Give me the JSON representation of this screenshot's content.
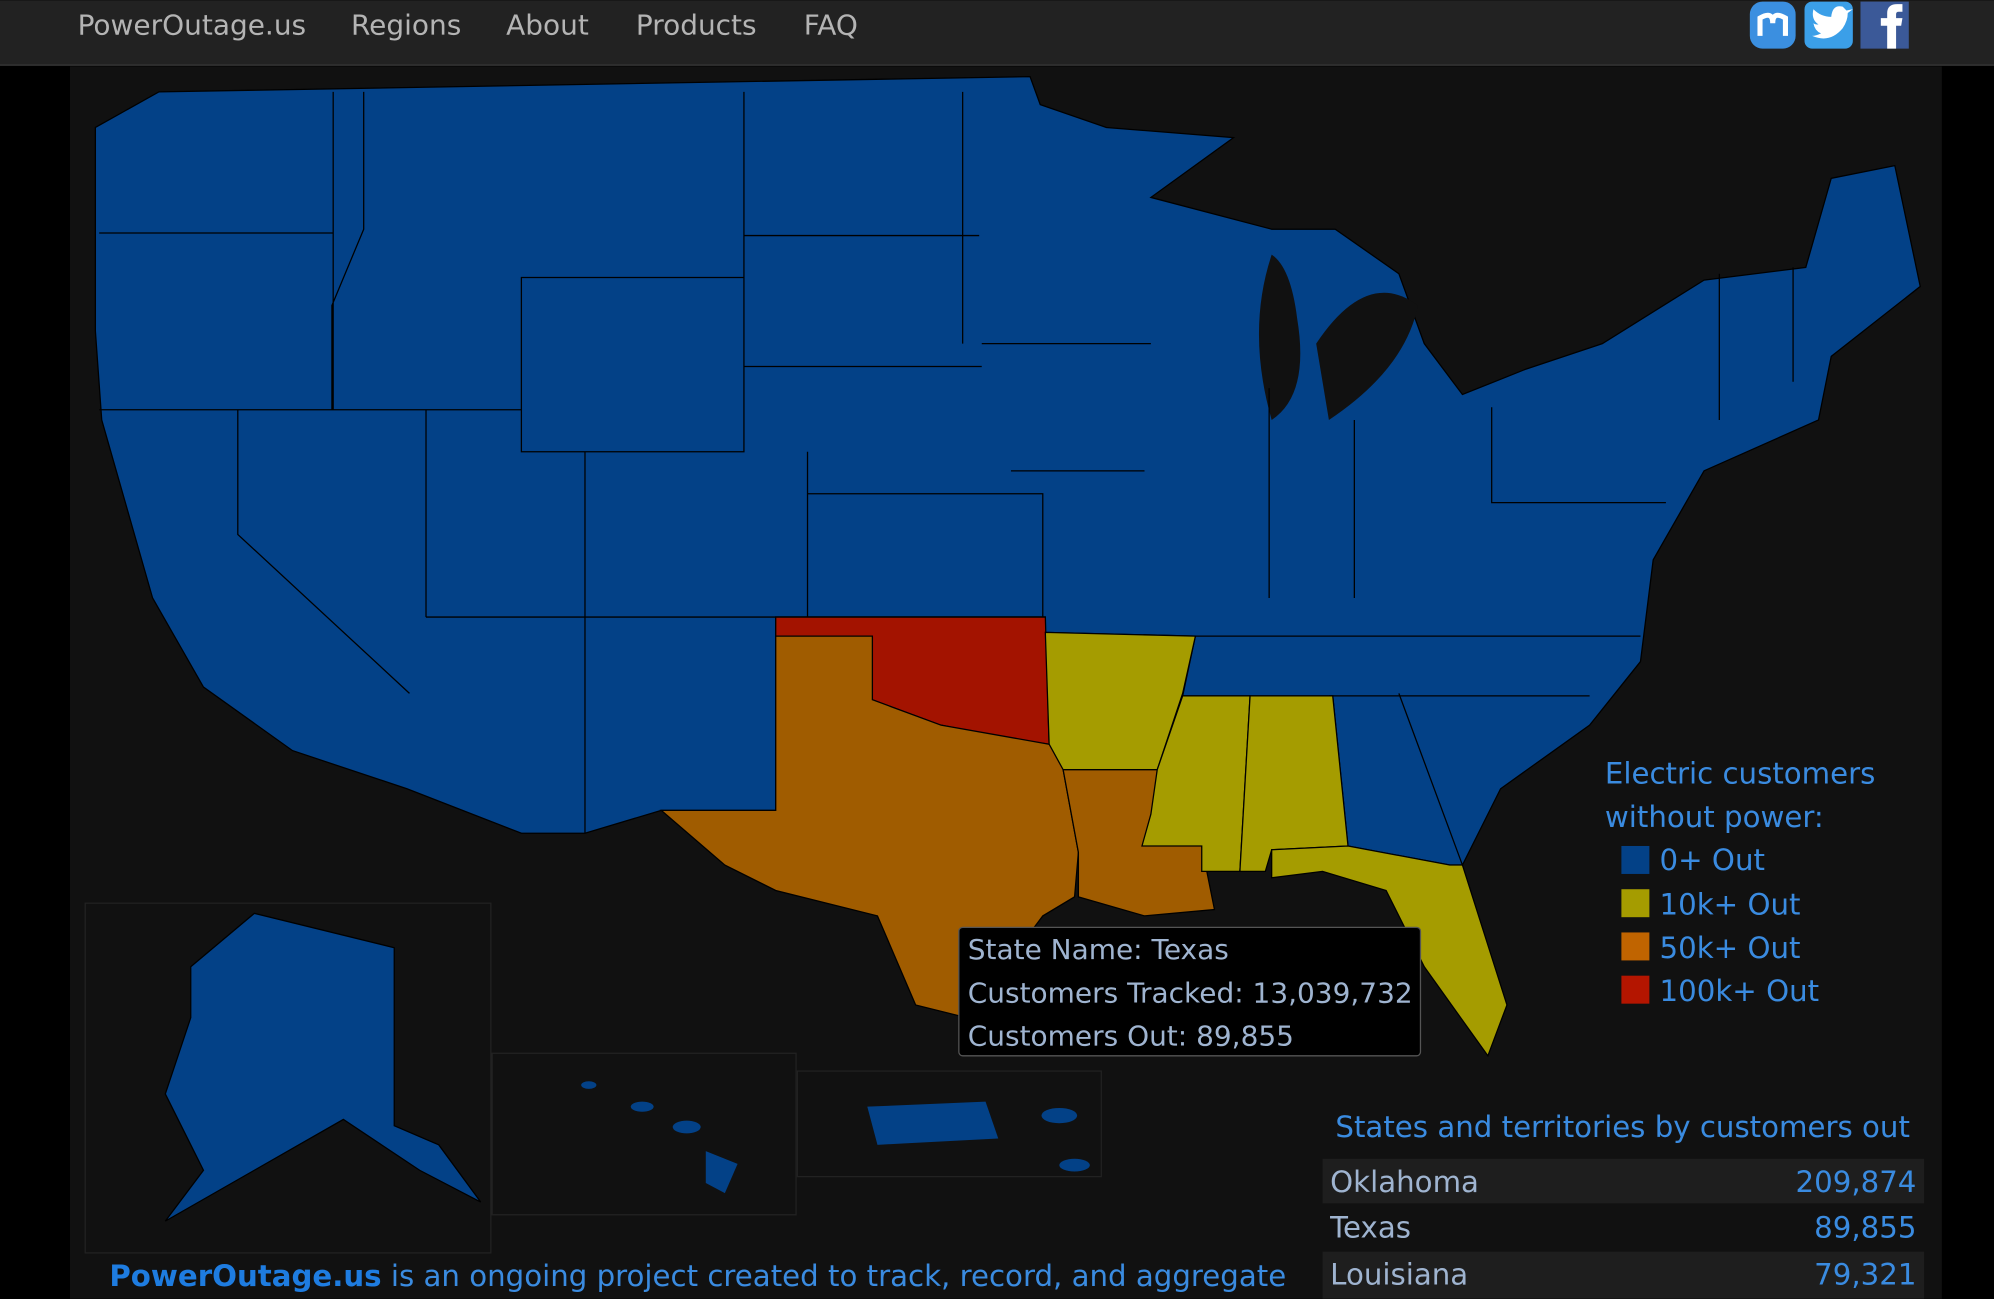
{
  "nav": {
    "brand": "PowerOutage.us",
    "links": [
      "Regions",
      "About",
      "Products",
      "FAQ"
    ]
  },
  "legend": {
    "title_lines": [
      "Electric customers",
      "without power:"
    ],
    "items": [
      "0+ Out",
      "10k+ Out",
      "50k+ Out",
      "100k+ Out"
    ]
  },
  "tooltip": {
    "lines": [
      "State Name: Texas",
      "Customers Tracked: 13,039,732",
      "Customers Out: 89,855"
    ]
  },
  "table": {
    "title": "States and territories by customers out",
    "rows": [
      [
        "Oklahoma",
        "209,874"
      ],
      [
        "Texas",
        "89,855"
      ],
      [
        "Louisiana",
        "79,321"
      ]
    ]
  },
  "footer": {
    "brand": "PowerOutage.us",
    "text": " is an ongoing project created to track, record, and aggregate"
  }
}
